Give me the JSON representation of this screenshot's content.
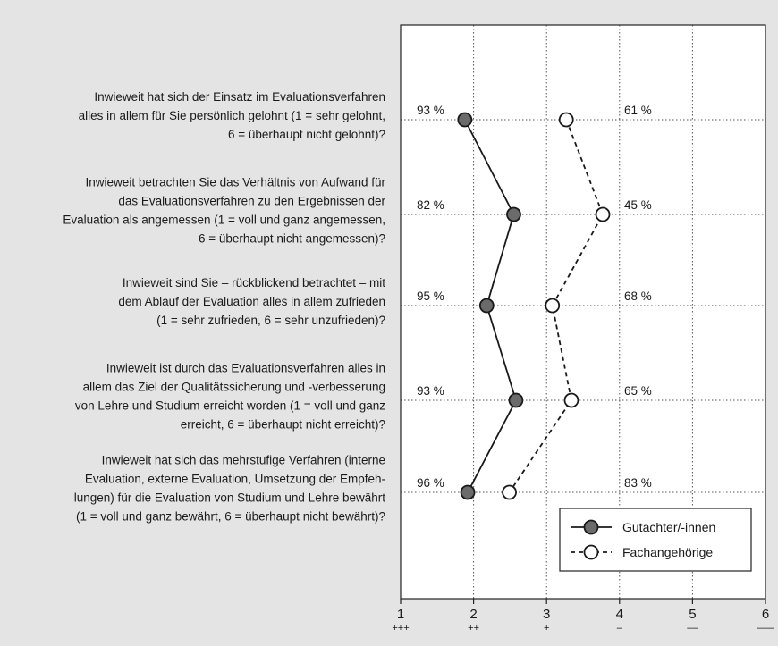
{
  "chart_data": {
    "type": "line",
    "orientation": "horizontal",
    "xlim": [
      1,
      6
    ],
    "x_ticks": [
      "1",
      "2",
      "3",
      "4",
      "5",
      "6"
    ],
    "x_tick_symbols": [
      "+++",
      "++",
      "+",
      "–",
      "––",
      "–––"
    ],
    "grid": true,
    "legend_position": "bottom-right",
    "categories": [
      [
        "Inwieweit hat sich der Einsatz im Evaluationsverfahren",
        "alles in allem für Sie persönlich gelohnt (1 = sehr gelohnt,",
        "6 = überhaupt nicht gelohnt)?"
      ],
      [
        "Inwieweit betrachten Sie das Verhältnis von Aufwand für",
        "das Evaluationsverfahren zu den Ergebnissen der",
        "Evaluation als angemessen (1 = voll und ganz angemessen,",
        "6 = überhaupt nicht angemessen)?"
      ],
      [
        "Inwieweit sind Sie – rückblickend betrachtet – mit",
        "dem Ablauf der Evaluation alles in allem zufrieden",
        "(1 = sehr zufrieden, 6 = sehr unzufrieden)?"
      ],
      [
        "Inwieweit ist durch das Evaluationsverfahren alles in",
        "allem das Ziel der Qualitätssicherung und -verbesserung",
        "von Lehre und Studium erreicht worden (1 = voll und ganz",
        "erreicht, 6 = überhaupt nicht erreicht)?"
      ],
      [
        "Inwieweit hat sich das mehrstufige Verfahren (interne",
        "Evaluation, externe Evaluation, Umsetzung der Empfeh-",
        "lungen) für die Evaluation von Studium und Lehre bewährt",
        "(1 = voll und ganz bewährt, 6 = überhaupt nicht bewährt)?"
      ]
    ],
    "series": [
      {
        "name": "Gutachter/-innen",
        "values": [
          1.88,
          2.55,
          2.18,
          2.58,
          1.92
        ],
        "labels": [
          "93 %",
          "82 %",
          "95 %",
          "93 %",
          "96 %"
        ],
        "color": "#6b6b6b",
        "line_style": "solid",
        "marker": "filled-circle"
      },
      {
        "name": "Fachangehörige",
        "values": [
          3.27,
          3.77,
          3.08,
          3.34,
          2.49
        ],
        "labels": [
          "61 %",
          "45 %",
          "68 %",
          "65 %",
          "83 %"
        ],
        "color": "#ffffff",
        "line_style": "dashed",
        "marker": "open-circle"
      }
    ]
  }
}
